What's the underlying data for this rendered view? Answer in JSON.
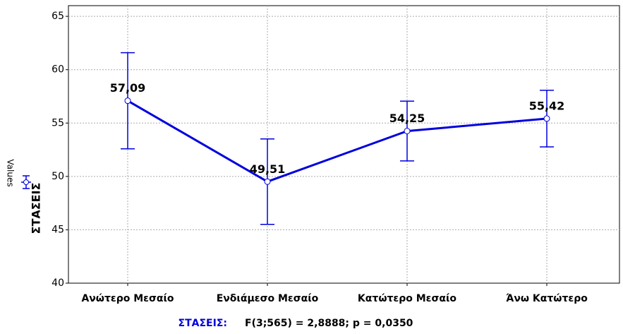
{
  "chart_data": {
    "type": "line",
    "y_label": "Values",
    "categories": [
      "Ανώτερο Μεσαίο",
      "Ενδιάμεσο Μεσαίο",
      "Κατώτερο Μεσαίο",
      "Άνω Κατώτερο"
    ],
    "series": [
      {
        "name": "ΣΤΑΣΕΙΣ",
        "color": "#0000dd",
        "values": [
          57.09,
          49.51,
          54.25,
          55.42
        ],
        "value_labels": [
          "57,09",
          "49,51",
          "54,25",
          "55,42"
        ],
        "errors": [
          4.5,
          4.0,
          2.8,
          2.65
        ]
      }
    ],
    "ylim": [
      40,
      66
    ],
    "yticks": [
      40,
      45,
      50,
      55,
      60,
      65
    ],
    "grid": true,
    "footer_factor": "ΣΤΑΣΕΙΣ:",
    "footer_stats": "F(3;565) = 2,8888; p = 0,0350"
  }
}
